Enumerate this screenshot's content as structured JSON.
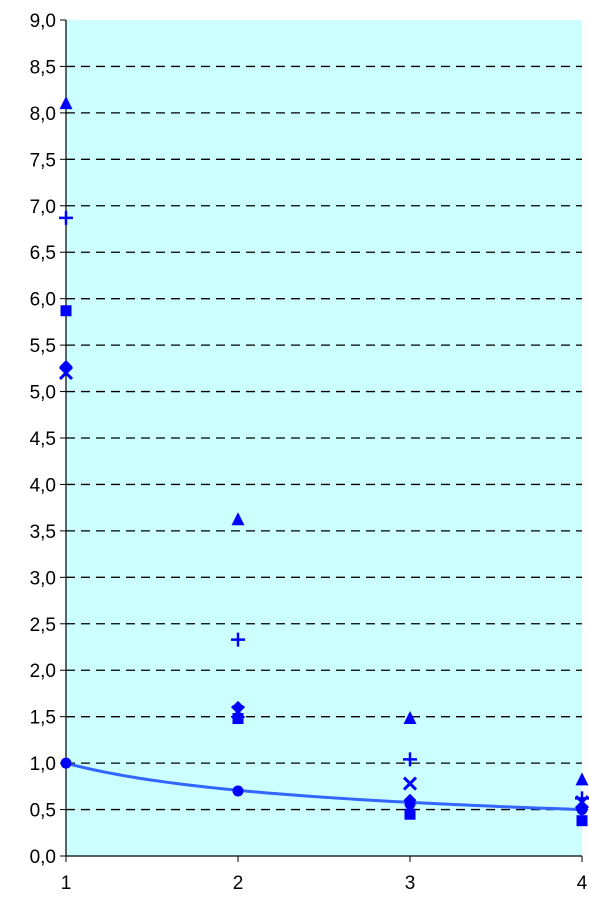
{
  "chart_data": {
    "type": "scatter",
    "title": "",
    "xlabel": "",
    "ylabel": "",
    "x_ticks": [
      "1",
      "2",
      "3",
      "4"
    ],
    "y_ticks": [
      "0,0",
      "0,5",
      "1,0",
      "1,5",
      "2,0",
      "2,5",
      "3,0",
      "3,5",
      "4,0",
      "4,5",
      "5,0",
      "5,5",
      "6,0",
      "6,5",
      "7,0",
      "7,5",
      "8,0",
      "8,5",
      "9,0"
    ],
    "xlim": [
      1,
      4
    ],
    "ylim": [
      0,
      9
    ],
    "grid": "horizontal dashed",
    "legend": "none",
    "plot_background": "#ccffff",
    "series": [
      {
        "marker": "triangle",
        "color": "#0000ff",
        "x": [
          1,
          2,
          3,
          4
        ],
        "y": [
          8.1,
          3.62,
          1.48,
          0.82
        ]
      },
      {
        "marker": "plus",
        "color": "#0000ff",
        "x": [
          1,
          2,
          3,
          4
        ],
        "y": [
          6.87,
          2.33,
          1.04,
          0.62
        ]
      },
      {
        "marker": "square",
        "color": "#0000ff",
        "x": [
          1,
          2,
          3,
          4
        ],
        "y": [
          5.87,
          1.48,
          0.45,
          0.38
        ]
      },
      {
        "marker": "diamond",
        "color": "#0000ff",
        "x": [
          1,
          2,
          3,
          4
        ],
        "y": [
          5.27,
          1.6,
          0.6,
          0.5
        ]
      },
      {
        "marker": "x",
        "color": "#0000ff",
        "x": [
          1,
          2,
          3,
          4
        ],
        "y": [
          5.2,
          1.55,
          0.78,
          0.58
        ]
      },
      {
        "marker": "circle",
        "color": "#0000ff",
        "x": [
          1,
          2,
          3,
          4
        ],
        "y": [
          1.0,
          0.7,
          0.56,
          0.5
        ]
      }
    ],
    "curve": {
      "color": "#3366ff",
      "description": "power-law fit y = x^-0.5",
      "x": [
        1,
        4
      ],
      "exponent": -0.5
    }
  }
}
